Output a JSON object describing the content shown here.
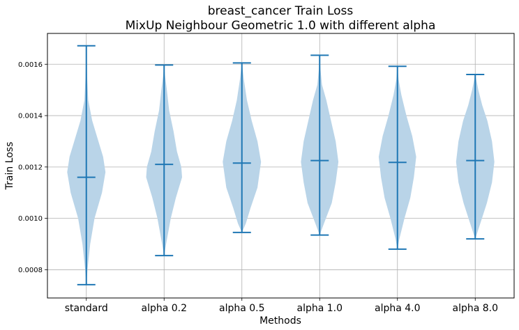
{
  "chart_data": {
    "type": "violin",
    "title": "breast_cancer Train Loss",
    "subtitle": "MixUp Neighbour Geometric 1.0 with different alpha",
    "xlabel": "Methods",
    "ylabel": "Train Loss",
    "categories": [
      "standard",
      "alpha 0.2",
      "alpha 0.5",
      "alpha 1.0",
      "alpha 4.0",
      "alpha 8.0"
    ],
    "yticks": [
      "0.0008",
      "0.0010",
      "0.0012",
      "0.0014",
      "0.0016"
    ],
    "ylim": [
      0.00069,
      0.00172
    ],
    "grid": true,
    "color": "#1f77b4",
    "body_color": "#b9d4e8",
    "violins": [
      {
        "name": "standard",
        "min": 0.000742,
        "max": 0.001672,
        "median": 0.00116,
        "density": [
          [
            0.000742,
            0.002
          ],
          [
            0.0008,
            0.06
          ],
          [
            0.0009,
            0.2
          ],
          [
            0.001,
            0.42
          ],
          [
            0.0011,
            0.8
          ],
          [
            0.00118,
            0.98
          ],
          [
            0.00124,
            0.86
          ],
          [
            0.0013,
            0.62
          ],
          [
            0.00138,
            0.3
          ],
          [
            0.00146,
            0.1
          ],
          [
            0.00155,
            0.04
          ],
          [
            0.00165,
            0.01
          ],
          [
            0.001672,
            0.002
          ]
        ]
      },
      {
        "name": "alpha 0.2",
        "min": 0.000855,
        "max": 0.001597,
        "median": 0.00121,
        "density": [
          [
            0.000855,
            0.002
          ],
          [
            0.0009,
            0.1
          ],
          [
            0.001,
            0.34
          ],
          [
            0.00108,
            0.6
          ],
          [
            0.00116,
            0.92
          ],
          [
            0.0012,
            0.88
          ],
          [
            0.00126,
            0.66
          ],
          [
            0.00134,
            0.48
          ],
          [
            0.00142,
            0.26
          ],
          [
            0.0015,
            0.14
          ],
          [
            0.00156,
            0.04
          ],
          [
            0.001597,
            0.002
          ]
        ]
      },
      {
        "name": "alpha 0.5",
        "min": 0.000945,
        "max": 0.001605,
        "median": 0.001215,
        "density": [
          [
            0.000945,
            0.002
          ],
          [
            0.00098,
            0.2
          ],
          [
            0.00104,
            0.44
          ],
          [
            0.00112,
            0.8
          ],
          [
            0.00122,
            0.98
          ],
          [
            0.0013,
            0.8
          ],
          [
            0.00138,
            0.5
          ],
          [
            0.00146,
            0.26
          ],
          [
            0.00154,
            0.1
          ],
          [
            0.001605,
            0.002
          ]
        ]
      },
      {
        "name": "alpha 1.0",
        "min": 0.000935,
        "max": 0.001635,
        "median": 0.001225,
        "density": [
          [
            0.000935,
            0.002
          ],
          [
            0.00098,
            0.22
          ],
          [
            0.00106,
            0.62
          ],
          [
            0.00114,
            0.82
          ],
          [
            0.00122,
            0.96
          ],
          [
            0.0013,
            0.82
          ],
          [
            0.00138,
            0.58
          ],
          [
            0.00146,
            0.34
          ],
          [
            0.00152,
            0.12
          ],
          [
            0.00158,
            0.04
          ],
          [
            0.001635,
            0.002
          ]
        ]
      },
      {
        "name": "alpha 4.0",
        "min": 0.00088,
        "max": 0.001592,
        "median": 0.001218,
        "density": [
          [
            0.00088,
            0.002
          ],
          [
            0.00092,
            0.1
          ],
          [
            0.001,
            0.36
          ],
          [
            0.00108,
            0.66
          ],
          [
            0.00116,
            0.84
          ],
          [
            0.00124,
            0.96
          ],
          [
            0.00132,
            0.76
          ],
          [
            0.0014,
            0.46
          ],
          [
            0.00148,
            0.2
          ],
          [
            0.00154,
            0.06
          ],
          [
            0.001592,
            0.002
          ]
        ]
      },
      {
        "name": "alpha 8.0",
        "min": 0.00092,
        "max": 0.00156,
        "median": 0.001225,
        "density": [
          [
            0.00092,
            0.002
          ],
          [
            0.00098,
            0.26
          ],
          [
            0.00106,
            0.6
          ],
          [
            0.00114,
            0.86
          ],
          [
            0.00122,
            0.98
          ],
          [
            0.0013,
            0.86
          ],
          [
            0.00138,
            0.62
          ],
          [
            0.00144,
            0.36
          ],
          [
            0.0015,
            0.16
          ],
          [
            0.00156,
            0.002
          ]
        ]
      }
    ]
  }
}
